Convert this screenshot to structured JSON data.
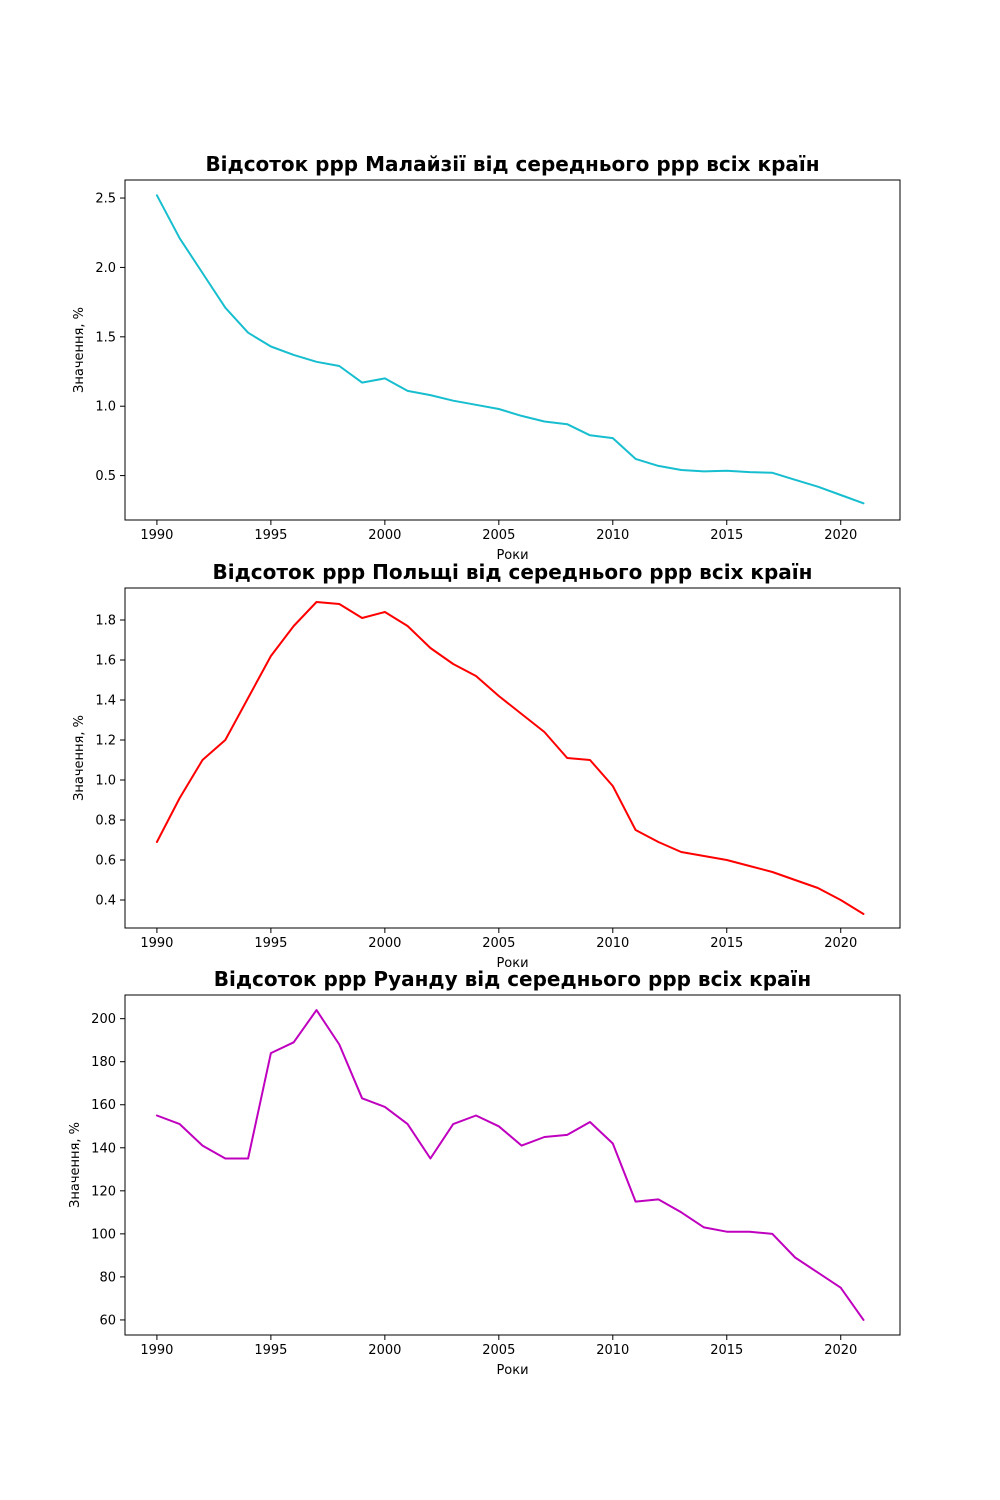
{
  "chart_data": [
    {
      "type": "line",
      "title": "Відсоток ppp Малайзії від середнього ppp всіх країн",
      "xlabel": "Роки",
      "ylabel": "Значення, %",
      "xlim": [
        1988.6,
        2022.6
      ],
      "ylim": [
        0.18,
        2.63
      ],
      "xticks": [
        "1990",
        "1995",
        "2000",
        "2005",
        "2010",
        "2015",
        "2020"
      ],
      "yticks": [
        "0.5",
        "1.0",
        "1.5",
        "2.0",
        "2.5"
      ],
      "grid": false,
      "color": "#17becf",
      "x": [
        1990,
        1991,
        1992,
        1993,
        1994,
        1995,
        1996,
        1997,
        1998,
        1999,
        2000,
        2001,
        2002,
        2003,
        2004,
        2005,
        2006,
        2007,
        2008,
        2009,
        2010,
        2011,
        2012,
        2013,
        2014,
        2015,
        2016,
        2017,
        2018,
        2019,
        2020,
        2021
      ],
      "values": [
        2.52,
        2.21,
        1.96,
        1.71,
        1.53,
        1.43,
        1.37,
        1.32,
        1.29,
        1.17,
        1.2,
        1.11,
        1.08,
        1.04,
        1.01,
        0.98,
        0.93,
        0.89,
        0.87,
        0.79,
        0.77,
        0.62,
        0.57,
        0.54,
        0.53,
        0.535,
        0.525,
        0.52,
        0.47,
        0.42,
        0.36,
        0.3
      ]
    },
    {
      "type": "line",
      "title": "Відсоток ppp Польщі від середнього ppp всіх країн",
      "xlabel": "Роки",
      "ylabel": "Значення, %",
      "xlim": [
        1988.6,
        2022.6
      ],
      "ylim": [
        0.26,
        1.96
      ],
      "xticks": [
        "1990",
        "1995",
        "2000",
        "2005",
        "2010",
        "2015",
        "2020"
      ],
      "yticks": [
        "0.4",
        "0.6",
        "0.8",
        "1.0",
        "1.2",
        "1.4",
        "1.6",
        "1.8"
      ],
      "grid": false,
      "color": "#ff0000",
      "x": [
        1990,
        1991,
        1992,
        1993,
        1994,
        1995,
        1996,
        1997,
        1998,
        1999,
        2000,
        2001,
        2002,
        2003,
        2004,
        2005,
        2006,
        2007,
        2008,
        2009,
        2010,
        2011,
        2012,
        2013,
        2014,
        2015,
        2016,
        2017,
        2018,
        2019,
        2020,
        2021
      ],
      "values": [
        0.69,
        0.91,
        1.1,
        1.2,
        1.41,
        1.62,
        1.77,
        1.89,
        1.88,
        1.81,
        1.84,
        1.77,
        1.66,
        1.58,
        1.52,
        1.42,
        1.33,
        1.24,
        1.11,
        1.1,
        0.97,
        0.75,
        0.69,
        0.64,
        0.62,
        0.6,
        0.57,
        0.54,
        0.5,
        0.46,
        0.4,
        0.33
      ]
    },
    {
      "type": "line",
      "title": "Відсоток ppp Руанду від середнього ppp всіх країн",
      "xlabel": "Роки",
      "ylabel": "Значення, %",
      "xlim": [
        1988.6,
        2022.6
      ],
      "ylim": [
        53,
        211
      ],
      "xticks": [
        "1990",
        "1995",
        "2000",
        "2005",
        "2010",
        "2015",
        "2020"
      ],
      "yticks": [
        "60",
        "80",
        "100",
        "120",
        "140",
        "160",
        "180",
        "200"
      ],
      "grid": false,
      "color": "#bf00bf",
      "x": [
        1990,
        1991,
        1992,
        1993,
        1994,
        1995,
        1996,
        1997,
        1998,
        1999,
        2000,
        2001,
        2002,
        2003,
        2004,
        2005,
        2006,
        2007,
        2008,
        2009,
        2010,
        2011,
        2012,
        2013,
        2014,
        2015,
        2016,
        2017,
        2018,
        2019,
        2020,
        2021
      ],
      "values": [
        155,
        151,
        141,
        135,
        135,
        184,
        189,
        204,
        188,
        163,
        159,
        151,
        135,
        151,
        155,
        150,
        141,
        145,
        146,
        152,
        142,
        115,
        116,
        110,
        103,
        101,
        101,
        100,
        89,
        82,
        75,
        60
      ]
    }
  ]
}
